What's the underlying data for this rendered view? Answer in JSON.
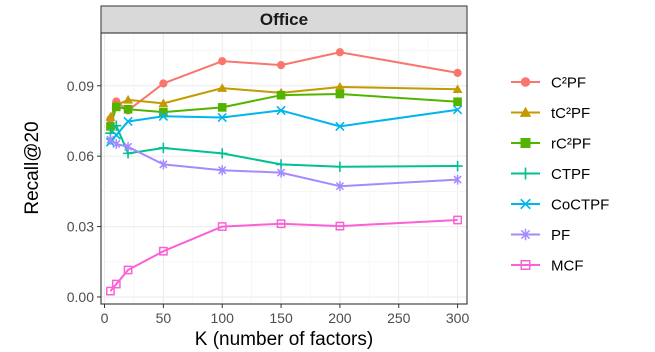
{
  "chart_data": {
    "type": "line",
    "title": "Office",
    "xlabel": "K (number of factors)",
    "ylabel": "Recall@20",
    "x": [
      5,
      10,
      20,
      50,
      100,
      150,
      200,
      300
    ],
    "xlim": [
      -3,
      308
    ],
    "ylim": [
      -0.003,
      0.1125
    ],
    "x_ticks": [
      0,
      50,
      100,
      150,
      200,
      250,
      300
    ],
    "x_tick_labels": [
      "0",
      "50",
      "100",
      "150",
      "200",
      "250",
      "300"
    ],
    "y_ticks": [
      0,
      0.03,
      0.06,
      0.09
    ],
    "y_tick_labels": [
      "0.00",
      "0.03",
      "0.06",
      "0.09"
    ],
    "grid": true,
    "legend_position": "right",
    "series": [
      {
        "name": "C²PF",
        "color": "#F8766D",
        "marker": "circle",
        "values": [
          0.0758,
          0.0833,
          0.0795,
          0.091,
          0.1005,
          0.0988,
          0.1043,
          0.0955
        ]
      },
      {
        "name": "tC²PF",
        "color": "#C49A00",
        "marker": "triangle",
        "values": [
          0.0767,
          0.0818,
          0.084,
          0.0825,
          0.089,
          0.087,
          0.0895,
          0.0885
        ]
      },
      {
        "name": "rC²PF",
        "color": "#53B400",
        "marker": "square",
        "values": [
          0.0727,
          0.081,
          0.08,
          0.0788,
          0.0808,
          0.086,
          0.0865,
          0.0832
        ]
      },
      {
        "name": "CTPF",
        "color": "#00C094",
        "marker": "plus",
        "values": [
          0.0698,
          0.073,
          0.0612,
          0.0635,
          0.0612,
          0.0565,
          0.0555,
          0.0558
        ]
      },
      {
        "name": "CoCTPF",
        "color": "#00B6EB",
        "marker": "x",
        "values": [
          0.066,
          0.069,
          0.0748,
          0.077,
          0.0765,
          0.0795,
          0.0727,
          0.0798
        ]
      },
      {
        "name": "PF",
        "color": "#A58AFF",
        "marker": "asterisk",
        "values": [
          0.067,
          0.0652,
          0.064,
          0.0565,
          0.054,
          0.053,
          0.0472,
          0.05
        ]
      },
      {
        "name": "MCF",
        "color": "#FB61D7",
        "marker": "square-open",
        "values": [
          0.0025,
          0.0055,
          0.0115,
          0.0195,
          0.03,
          0.0312,
          0.0302,
          0.0328
        ]
      }
    ]
  }
}
